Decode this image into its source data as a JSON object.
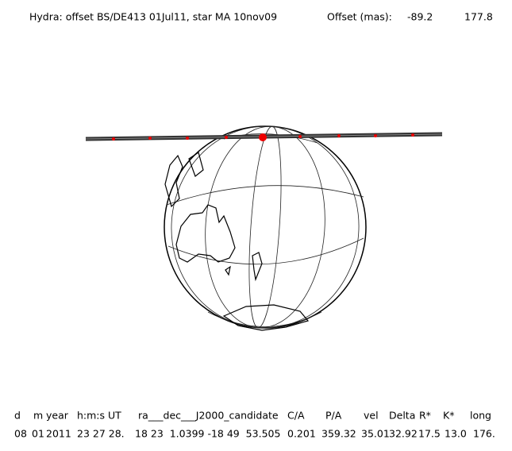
{
  "header": {
    "title": "Hydra: offset BS/DE413 01Jul11, star MA 10nov09",
    "offset_label": "Offset (mas):",
    "offset_values": [
      "-89.2",
      "177.8"
    ]
  },
  "table": {
    "columns": [
      "d",
      "m",
      "year",
      "h:m:s UT",
      "ra___dec___J2000_candidate",
      "C/A",
      "P/A",
      "vel",
      "Delta",
      "R*",
      "K*",
      "long"
    ],
    "row": [
      "08",
      "01",
      "2011",
      "23 27 28.",
      "18 23  1.0399 -18 49  53.505",
      "0.201",
      "359.32",
      "35.01",
      "32.92",
      "17.5",
      "13.0",
      "176."
    ]
  }
}
